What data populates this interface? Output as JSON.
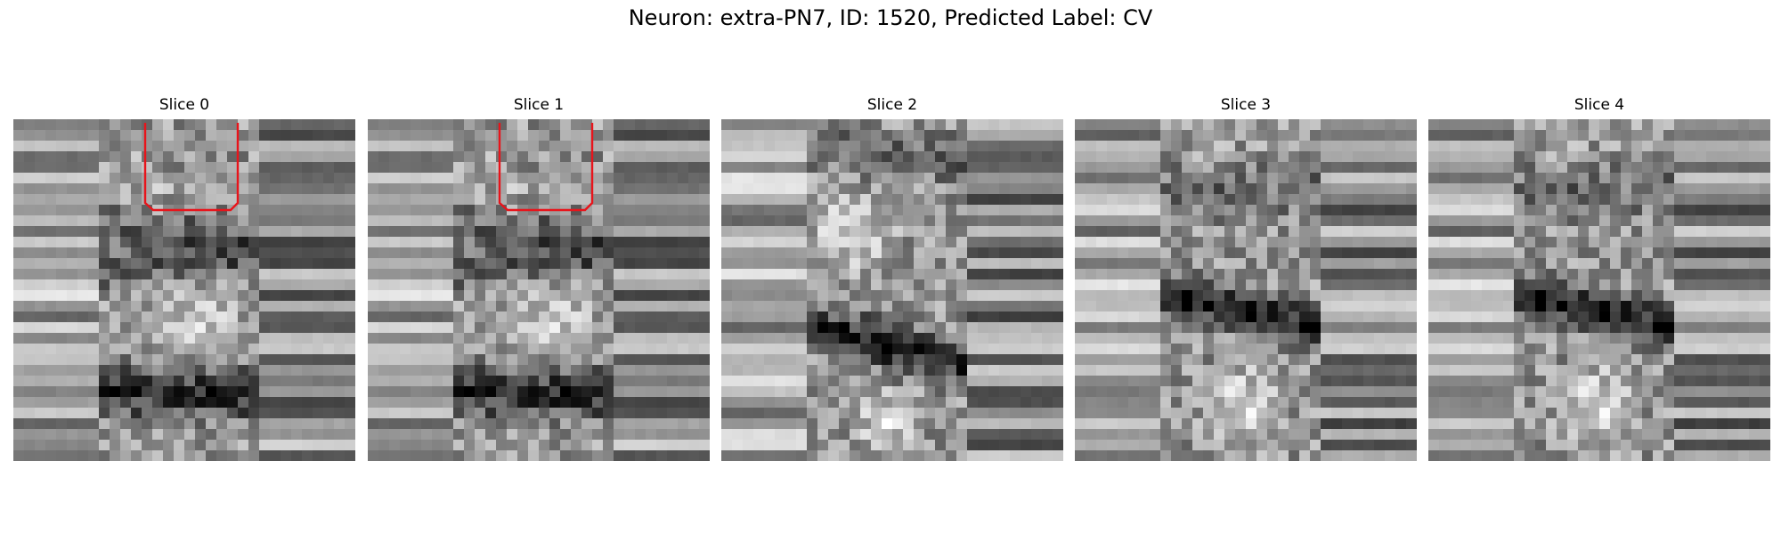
{
  "figure": {
    "title": "Neuron: extra-PN7, ID: 1520, Predicted Label: CV"
  },
  "panels": [
    {
      "title": "Slice 0",
      "has_roi_outline": true
    },
    {
      "title": "Slice 1",
      "has_roi_outline": true
    },
    {
      "title": "Slice 2",
      "has_roi_outline": false
    },
    {
      "title": "Slice 3",
      "has_roi_outline": false
    },
    {
      "title": "Slice 4",
      "has_roi_outline": false
    }
  ],
  "colors": {
    "roi_outline": "#e8141b",
    "colormap": "gray"
  }
}
